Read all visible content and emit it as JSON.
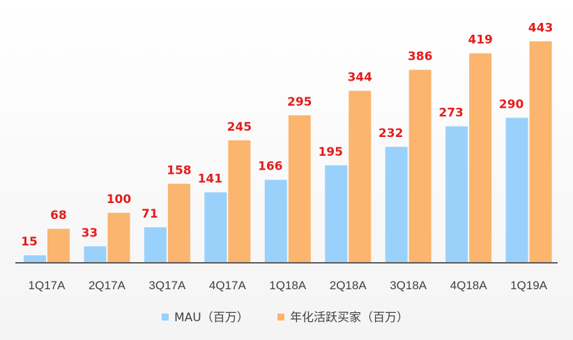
{
  "chart_data": {
    "type": "bar",
    "title": "",
    "xlabel": "",
    "ylabel": "",
    "ylim": [
      0,
      470
    ],
    "grid": false,
    "legend_position": "bottom",
    "categories": [
      "1Q17A",
      "2Q17A",
      "3Q17A",
      "4Q17A",
      "1Q18A",
      "2Q18A",
      "3Q18A",
      "4Q18A",
      "1Q19A"
    ],
    "series": [
      {
        "name": "MAU（百万）",
        "color": "#99d1fb",
        "values": [
          15,
          33,
          71,
          141,
          166,
          195,
          232,
          273,
          290
        ]
      },
      {
        "name": "年化活跃买家（百万）",
        "color": "#fbb56e",
        "values": [
          68,
          100,
          158,
          245,
          295,
          344,
          386,
          419,
          443
        ]
      }
    ],
    "data_label_color": "#e51c1c",
    "axis_color": "#595959"
  }
}
